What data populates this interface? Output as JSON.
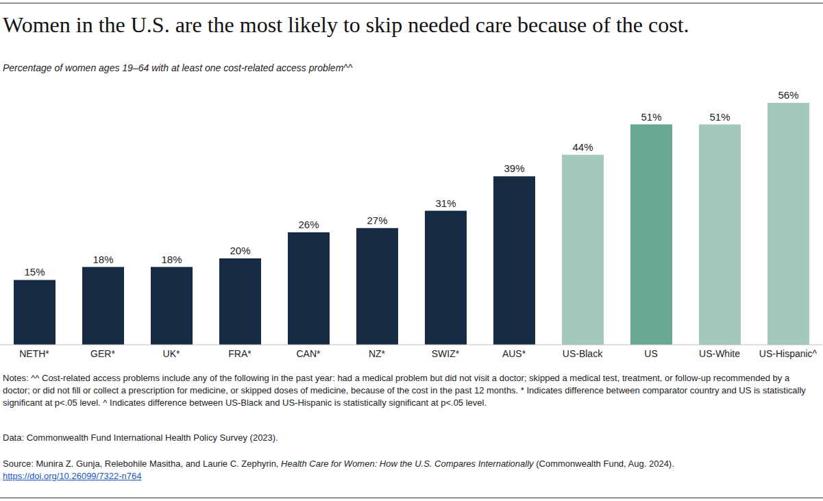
{
  "chart_data": {
    "type": "bar",
    "title": "Women in the U.S. are the most likely to skip needed care because of the cost.",
    "subtitle": "Percentage of women ages 19–64 with at least one cost-related access problem^^",
    "categories": [
      "NETH*",
      "GER*",
      "UK*",
      "FRA*",
      "CAN*",
      "NZ*",
      "SWIZ*",
      "AUS*",
      "US-Black",
      "US",
      "US-White",
      "US-Hispanic^"
    ],
    "values": [
      15,
      18,
      18,
      20,
      26,
      27,
      31,
      39,
      44,
      51,
      51,
      56
    ],
    "value_labels": [
      "15%",
      "18%",
      "18%",
      "20%",
      "26%",
      "27%",
      "31%",
      "39%",
      "44%",
      "51%",
      "51%",
      "56%"
    ],
    "colors": [
      "#172b45",
      "#172b45",
      "#172b45",
      "#172b45",
      "#172b45",
      "#172b45",
      "#172b45",
      "#172b45",
      "#a3c9bc",
      "#66a893",
      "#a3c9bc",
      "#a3c9bc"
    ],
    "data_labels": true,
    "tick_labels": "x",
    "grid": false,
    "notes": "Notes: ^^ Cost-related access problems include any of the following in the past year: had a medical problem but did not visit a doctor; skipped a medical test, treatment, or follow-up recommended by a doctor; or did not fill or collect a prescription for medicine, or skipped doses of medicine, because of the cost in the past 12 months. * Indicates difference between comparator country and US is statistically significant at p<.05 level. ^ Indicates difference between US-Black and US-Hispanic is statistically significant at p<.05 level.",
    "data_source": "Data: Commonwealth Fund International Health Policy Survey (2023).",
    "source": [
      "Source: Munira Z. Gunja, Relebohile Masitha, and Laurie C. Zephyrin, ",
      "Health Care for Women: How the U.S. Compares Internationally",
      " (Commonwealth Fund, Aug. 2024)."
    ],
    "source_link": "https://doi.org/10.26099/7322-n764"
  }
}
